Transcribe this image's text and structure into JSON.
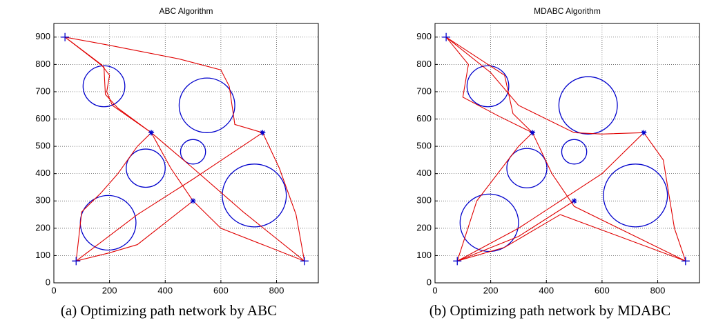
{
  "chart_data": [
    {
      "type": "path",
      "title": "ABC Algorithm",
      "caption": "(a) Optimizing path network by ABC",
      "xlim": [
        0,
        950
      ],
      "ylim": [
        0,
        950
      ],
      "xticks": [
        0,
        200,
        400,
        600,
        800
      ],
      "yticks": [
        0,
        100,
        200,
        300,
        400,
        500,
        600,
        700,
        800,
        900
      ],
      "grid": true,
      "obstacles": {
        "color": "#0000cc",
        "x": [
          180,
          550,
          330,
          500,
          720,
          195
        ],
        "y": [
          720,
          650,
          420,
          480,
          320,
          220
        ],
        "r": [
          75,
          100,
          70,
          45,
          115,
          100
        ]
      },
      "nodes": {
        "color": "#0000cc",
        "x": [
          40,
          80,
          900,
          350,
          750,
          500
        ],
        "y": [
          900,
          80,
          80,
          550,
          550,
          300
        ],
        "markers": [
          "+",
          "+",
          "+",
          "*",
          "*",
          "*"
        ]
      },
      "path_color": "#e00000",
      "paths": [
        {
          "x": [
            40,
            170,
            200,
            190,
            210,
            350
          ],
          "y": [
            900,
            800,
            760,
            700,
            650,
            550
          ]
        },
        {
          "x": [
            40,
            180,
            185,
            230,
            350
          ],
          "y": [
            900,
            790,
            690,
            640,
            550
          ]
        },
        {
          "x": [
            40,
            200,
            450,
            600,
            630,
            650,
            750
          ],
          "y": [
            900,
            870,
            820,
            780,
            720,
            580,
            550
          ]
        },
        {
          "x": [
            350,
            500,
            680,
            900
          ],
          "y": [
            550,
            420,
            260,
            80
          ]
        },
        {
          "x": [
            350,
            420,
            500
          ],
          "y": [
            550,
            420,
            300
          ]
        },
        {
          "x": [
            750,
            810,
            870,
            900
          ],
          "y": [
            550,
            420,
            250,
            80
          ]
        },
        {
          "x": [
            80,
            300,
            500,
            750
          ],
          "y": [
            80,
            250,
            380,
            550
          ]
        },
        {
          "x": [
            80,
            100,
            170,
            230,
            300,
            350
          ],
          "y": [
            80,
            260,
            330,
            400,
            500,
            550
          ]
        },
        {
          "x": [
            80,
            200,
            300,
            500
          ],
          "y": [
            80,
            110,
            140,
            300
          ]
        },
        {
          "x": [
            500,
            600,
            900
          ],
          "y": [
            300,
            200,
            80
          ]
        }
      ]
    },
    {
      "type": "path",
      "title": "MDABC Algorithm",
      "caption": "(b) Optimizing path network by MDABC",
      "xlim": [
        0,
        950
      ],
      "ylim": [
        0,
        950
      ],
      "xticks": [
        0,
        200,
        400,
        600,
        800
      ],
      "yticks": [
        0,
        100,
        200,
        300,
        400,
        500,
        600,
        700,
        800,
        900
      ],
      "grid": true,
      "obstacles": {
        "color": "#0000cc",
        "x": [
          190,
          550,
          330,
          500,
          720,
          195
        ],
        "y": [
          720,
          650,
          420,
          480,
          320,
          220
        ],
        "r": [
          75,
          105,
          72,
          45,
          115,
          105
        ]
      },
      "nodes": {
        "color": "#0000cc",
        "x": [
          40,
          80,
          900,
          350,
          750,
          500
        ],
        "y": [
          900,
          80,
          80,
          550,
          550,
          300
        ],
        "markers": [
          "+",
          "+",
          "+",
          "*",
          "*",
          "*"
        ]
      },
      "path_color": "#e00000",
      "paths": [
        {
          "x": [
            40,
            120,
            100,
            230,
            350
          ],
          "y": [
            900,
            800,
            680,
            610,
            550
          ]
        },
        {
          "x": [
            40,
            200,
            300,
            500,
            600,
            750
          ],
          "y": [
            900,
            770,
            650,
            550,
            545,
            550
          ]
        },
        {
          "x": [
            40,
            250,
            280,
            350
          ],
          "y": [
            900,
            760,
            620,
            550
          ]
        },
        {
          "x": [
            350,
            420,
            500,
            900
          ],
          "y": [
            550,
            400,
            280,
            80
          ]
        },
        {
          "x": [
            80,
            300,
            600,
            750
          ],
          "y": [
            80,
            200,
            400,
            550
          ]
        },
        {
          "x": [
            80,
            150,
            300,
            350
          ],
          "y": [
            80,
            300,
            500,
            550
          ]
        },
        {
          "x": [
            80,
            300,
            500
          ],
          "y": [
            80,
            170,
            300
          ]
        },
        {
          "x": [
            750,
            820,
            860,
            900
          ],
          "y": [
            550,
            450,
            200,
            80
          ]
        },
        {
          "x": [
            80,
            250,
            450,
            900
          ],
          "y": [
            80,
            130,
            250,
            80
          ]
        }
      ]
    }
  ]
}
